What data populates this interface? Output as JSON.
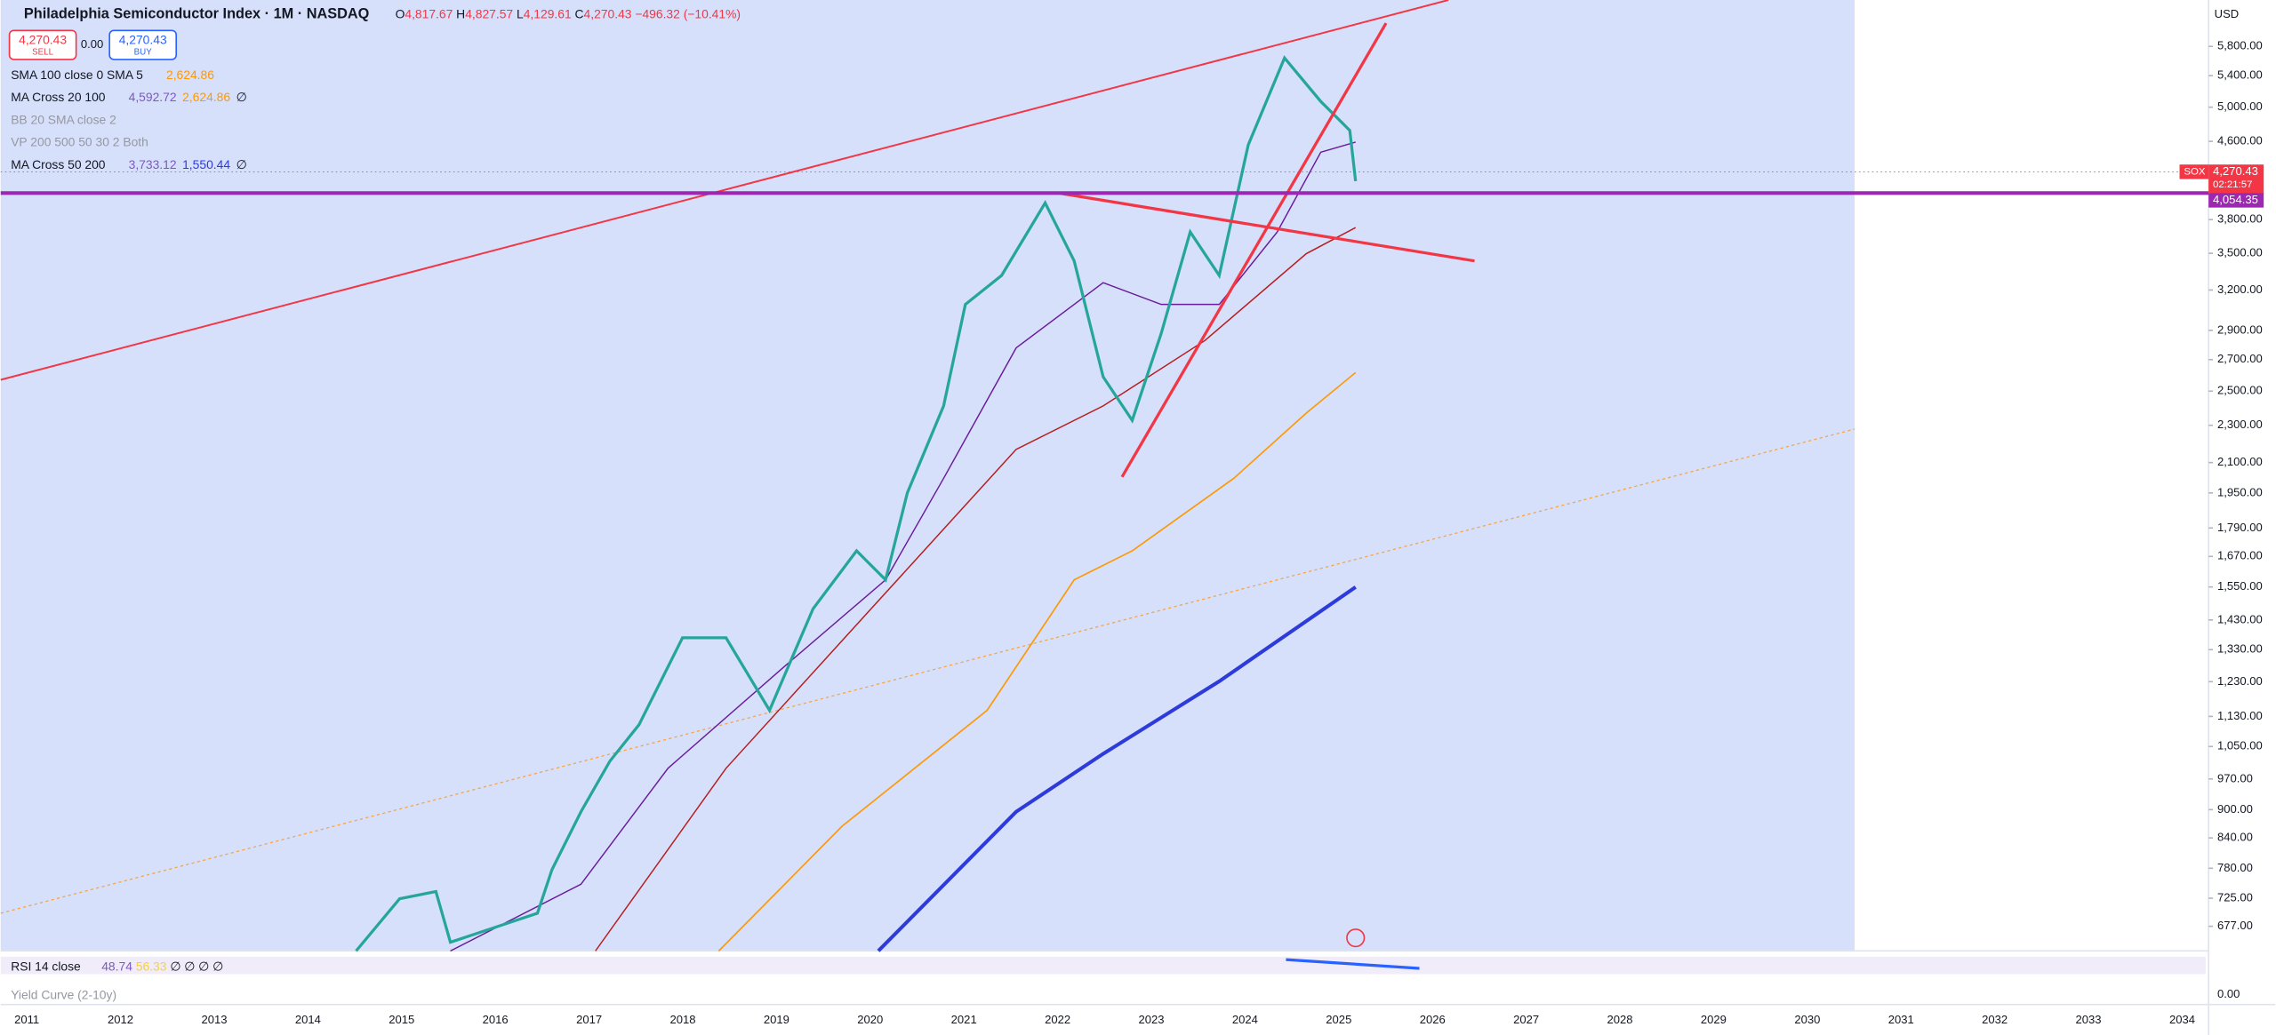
{
  "header": {
    "symbol": "Philadelphia Semiconductor Index · 1M · NASDAQ",
    "open": "4,817.67",
    "high": "4,827.57",
    "low": "4,129.61",
    "close": "4,270.43",
    "change": "−496.32 (−10.41%)",
    "o": "O",
    "h": "H",
    "l": "L",
    "c": "C"
  },
  "trade": {
    "sell_price": "4,270.43",
    "sell": "SELL",
    "spread": "0.00",
    "buy_price": "4,270.43",
    "buy": "BUY"
  },
  "indicators": [
    {
      "name": "SMA 100 close 0 SMA 5",
      "v1": "2,624.86",
      "v2": "",
      "v3": ""
    },
    {
      "name": "MA Cross 20 100",
      "v1": "4,592.72",
      "v2": "2,624.86",
      "v3": "∅"
    },
    {
      "name": "BB 20 SMA close 2",
      "v1": "",
      "v2": "",
      "v3": ""
    },
    {
      "name": "VP 200 500 50 30 2 Both",
      "v1": "",
      "v2": "",
      "v3": ""
    },
    {
      "name": "MA Cross 50 200",
      "v1": "3,733.12",
      "v2": "1,550.44",
      "v3": "∅"
    }
  ],
  "currency": "USD",
  "price_ticks": [
    {
      "value": 5800,
      "label": "5,800.00"
    },
    {
      "value": 5400,
      "label": "5,400.00"
    },
    {
      "value": 5000,
      "label": "5,000.00"
    },
    {
      "value": 4600,
      "label": "4,600.00"
    },
    {
      "value": 3800,
      "label": "3,800.00"
    },
    {
      "value": 3500,
      "label": "3,500.00"
    },
    {
      "value": 3200,
      "label": "3,200.00"
    },
    {
      "value": 2900,
      "label": "2,900.00"
    },
    {
      "value": 2700,
      "label": "2,700.00"
    },
    {
      "value": 2500,
      "label": "2,500.00"
    },
    {
      "value": 2300,
      "label": "2,300.00"
    },
    {
      "value": 2100,
      "label": "2,100.00"
    },
    {
      "value": 1950,
      "label": "1,950.00"
    },
    {
      "value": 1790,
      "label": "1,790.00"
    },
    {
      "value": 1670,
      "label": "1,670.00"
    },
    {
      "value": 1550,
      "label": "1,550.00"
    },
    {
      "value": 1430,
      "label": "1,430.00"
    },
    {
      "value": 1330,
      "label": "1,330.00"
    },
    {
      "value": 1230,
      "label": "1,230.00"
    },
    {
      "value": 1130,
      "label": "1,130.00"
    },
    {
      "value": 1050,
      "label": "1,050.00"
    },
    {
      "value": 970,
      "label": "970.00"
    },
    {
      "value": 900,
      "label": "900.00"
    },
    {
      "value": 840,
      "label": "840.00"
    },
    {
      "value": 780,
      "label": "780.00"
    },
    {
      "value": 725,
      "label": "725.00"
    },
    {
      "value": 677,
      "label": "677.00"
    }
  ],
  "price_tags": {
    "symbol": "SOX",
    "last": {
      "value": 4270.43,
      "label": "4,270.43"
    },
    "countdown": "02:21:57",
    "line": {
      "value": 4054.35,
      "label": "4,054.35"
    }
  },
  "years": [
    "2011",
    "2012",
    "2013",
    "2014",
    "2015",
    "2016",
    "2017",
    "2018",
    "2019",
    "2020",
    "2021",
    "2022",
    "2023",
    "2024",
    "2025",
    "2026",
    "2027",
    "2028",
    "2029",
    "2030",
    "2031",
    "2032",
    "2033",
    "2034"
  ],
  "rsi": {
    "name": "RSI 14 close",
    "v1": "48.74",
    "v2": "56.33",
    "rest": "∅ ∅ ∅ ∅"
  },
  "yield": {
    "name": "Yield Curve (2-10y)",
    "zero": "0.00"
  }
}
